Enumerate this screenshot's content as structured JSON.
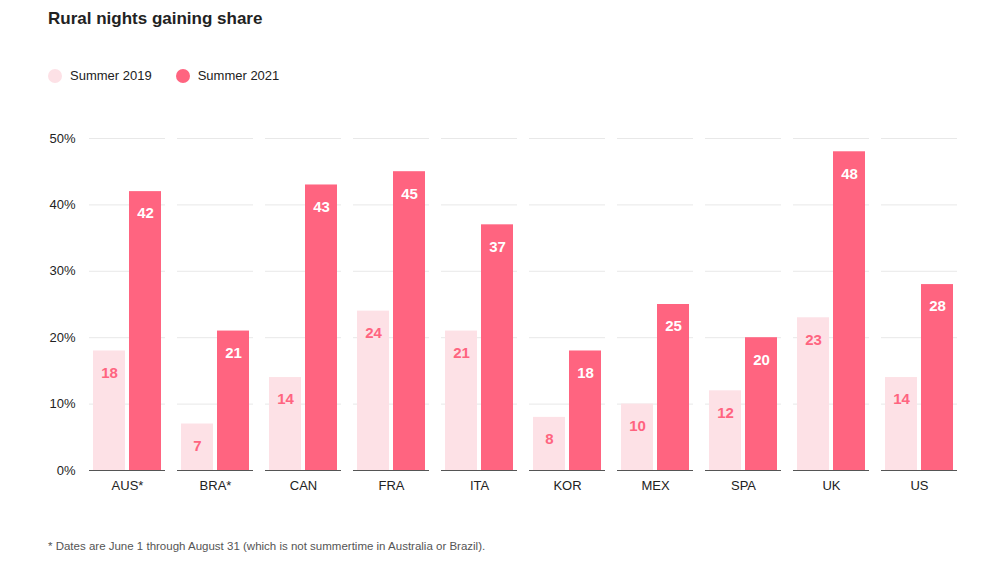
{
  "chart_data": {
    "type": "bar",
    "title": "Rural nights gaining share",
    "footnote": "* Dates are June 1 through August 31 (which is not summertime in Australia or Brazil).",
    "categories": [
      "AUS*",
      "BRA*",
      "CAN",
      "FRA",
      "ITA",
      "KOR",
      "MEX",
      "SPA",
      "UK",
      "US"
    ],
    "series": [
      {
        "name": "Summer 2019",
        "color": "#fde1e6",
        "values": [
          18,
          7,
          14,
          24,
          21,
          8,
          10,
          12,
          23,
          14
        ]
      },
      {
        "name": "Summer 2021",
        "color": "#ff6480",
        "values": [
          42,
          21,
          43,
          45,
          37,
          18,
          25,
          20,
          48,
          28
        ]
      }
    ],
    "ylim": [
      0,
      50
    ],
    "yticks": [
      {
        "value": 0,
        "label": "0%"
      },
      {
        "value": 10,
        "label": "10%"
      },
      {
        "value": 20,
        "label": "20%"
      },
      {
        "value": 30,
        "label": "30%"
      },
      {
        "value": 40,
        "label": "40%"
      },
      {
        "value": 50,
        "label": "50%"
      }
    ],
    "grid": true,
    "legend": "top-left",
    "data_labels": true
  }
}
